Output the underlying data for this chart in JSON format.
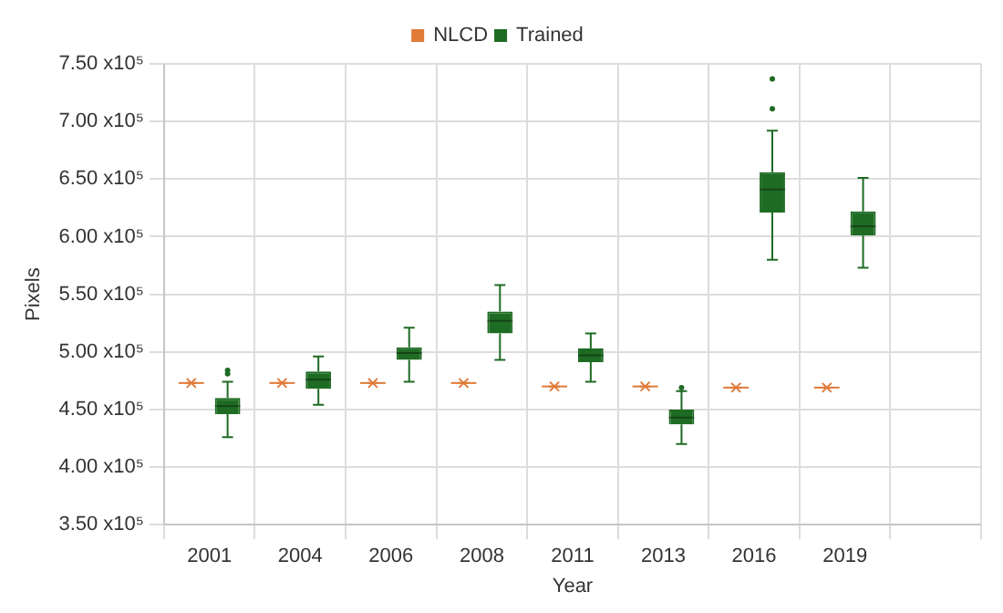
{
  "chart_data": {
    "type": "box",
    "xlabel": "Year",
    "ylabel": "Pixels",
    "categories": [
      "2001",
      "2004",
      "2006",
      "2008",
      "2011",
      "2013",
      "2016",
      "2019",
      null
    ],
    "ylim": [
      350000,
      750000
    ],
    "yticks": [
      {
        "value": 350000,
        "label": "3.50 x10⁵"
      },
      {
        "value": 400000,
        "label": "4.00 x10⁵"
      },
      {
        "value": 450000,
        "label": "4.50 x10⁵"
      },
      {
        "value": 500000,
        "label": "5.00 x10⁵"
      },
      {
        "value": 550000,
        "label": "5.50 x10⁵"
      },
      {
        "value": 600000,
        "label": "6.00 x10⁵"
      },
      {
        "value": 650000,
        "label": "6.50 x10⁵"
      },
      {
        "value": 700000,
        "label": "7.00 x10⁵"
      },
      {
        "value": 750000,
        "label": "7.50 x10⁵"
      }
    ],
    "grid": true,
    "legend": "top",
    "series": [
      {
        "name": "NLCD",
        "color": "#e07b39",
        "boxes": [
          {
            "low": 473000,
            "q1": 473000,
            "median": 473000,
            "q3": 473000,
            "high": 473000,
            "mean": 473000
          },
          {
            "low": 473000,
            "q1": 473000,
            "median": 473000,
            "q3": 473000,
            "high": 473000,
            "mean": 473000
          },
          {
            "low": 473000,
            "q1": 473000,
            "median": 473000,
            "q3": 473000,
            "high": 473000,
            "mean": 473000
          },
          {
            "low": 473000,
            "q1": 473000,
            "median": 473000,
            "q3": 473000,
            "high": 473000,
            "mean": 473000
          },
          {
            "low": 470000,
            "q1": 470000,
            "median": 470000,
            "q3": 470000,
            "high": 470000,
            "mean": 470000
          },
          {
            "low": 470000,
            "q1": 470000,
            "median": 470000,
            "q3": 470000,
            "high": 470000,
            "mean": 470000
          },
          {
            "low": 469000,
            "q1": 469000,
            "median": 469000,
            "q3": 469000,
            "high": 469000,
            "mean": 469000
          },
          {
            "low": 469000,
            "q1": 469000,
            "median": 469000,
            "q3": 469000,
            "high": 469000,
            "mean": 469000
          },
          null
        ]
      },
      {
        "name": "Trained",
        "color": "#1e6b23",
        "boxes": [
          {
            "low": 426000,
            "q1": 446000,
            "median": 453000,
            "q3": 460000,
            "high": 474000,
            "outliers": [
              481000,
              484000
            ]
          },
          {
            "low": 454000,
            "q1": 468000,
            "median": 476000,
            "q3": 483000,
            "high": 496000
          },
          {
            "low": 474000,
            "q1": 493000,
            "median": 499000,
            "q3": 504000,
            "high": 521000
          },
          {
            "low": 493000,
            "q1": 516000,
            "median": 527000,
            "q3": 535000,
            "high": 558000
          },
          {
            "low": 474000,
            "q1": 491000,
            "median": 497000,
            "q3": 503000,
            "high": 516000
          },
          {
            "low": 420000,
            "q1": 437000,
            "median": 443000,
            "q3": 450000,
            "high": 466000,
            "outliers": [
              469000
            ]
          },
          {
            "low": 580000,
            "q1": 621000,
            "median": 641000,
            "q3": 656000,
            "high": 692000,
            "outliers": [
              711000,
              737000
            ]
          },
          {
            "low": 573000,
            "q1": 601000,
            "median": 609000,
            "q3": 622000,
            "high": 651000
          },
          null
        ]
      }
    ]
  }
}
